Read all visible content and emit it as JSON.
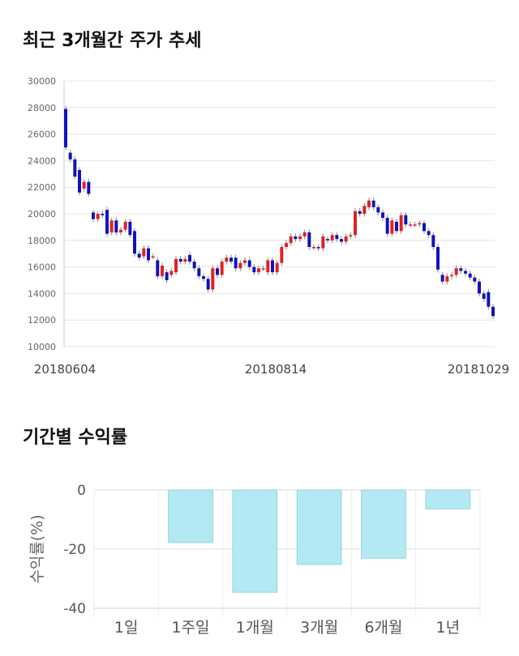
{
  "sections": {
    "price_title": "최근 3개월간 주가 추세",
    "return_title": "기간별 수익률"
  },
  "chart_data": [
    {
      "type": "candlestick",
      "title": "최근 3개월간 주가 추세",
      "y_ticks": [
        10000,
        12000,
        14000,
        16000,
        18000,
        20000,
        22000,
        24000,
        26000,
        28000,
        30000
      ],
      "ylim": [
        10000,
        30000
      ],
      "x_tick_labels": [
        "20180604",
        "20180814",
        "20181029"
      ],
      "grid": true,
      "colors": {
        "up": "#dd2222",
        "down": "#1111bb",
        "grid": "#e4e4e4"
      },
      "candles": [
        [
          27900,
          25000
        ],
        [
          24600,
          24100
        ],
        [
          24100,
          22800
        ],
        [
          23300,
          21600
        ],
        [
          21900,
          22400
        ],
        [
          22400,
          21500
        ],
        [
          20100,
          19600
        ],
        [
          19600,
          20000
        ],
        [
          20000,
          19900
        ],
        [
          20300,
          18500
        ],
        [
          18600,
          19500
        ],
        [
          19500,
          18600
        ],
        [
          18600,
          18800
        ],
        [
          18800,
          19400
        ],
        [
          19400,
          18400
        ],
        [
          18700,
          17000
        ],
        [
          17000,
          16700
        ],
        [
          16800,
          17400
        ],
        [
          17400,
          16500
        ],
        [
          16800,
          16800
        ],
        [
          16500,
          15300
        ],
        [
          15300,
          16100
        ],
        [
          15600,
          15000
        ],
        [
          15400,
          15700
        ],
        [
          15600,
          16600
        ],
        [
          16600,
          16400
        ],
        [
          16400,
          16600
        ],
        [
          16900,
          16400
        ],
        [
          16400,
          15900
        ],
        [
          15900,
          15300
        ],
        [
          15300,
          15100
        ],
        [
          15100,
          14300
        ],
        [
          14300,
          15900
        ],
        [
          15900,
          15400
        ],
        [
          15400,
          16400
        ],
        [
          16400,
          16700
        ],
        [
          16700,
          16400
        ],
        [
          16700,
          15900
        ],
        [
          15900,
          16300
        ],
        [
          16300,
          16500
        ],
        [
          16500,
          16000
        ],
        [
          16000,
          15600
        ],
        [
          15600,
          15900
        ],
        [
          15900,
          15900
        ],
        [
          15600,
          16500
        ],
        [
          16500,
          15600
        ],
        [
          15600,
          16300
        ],
        [
          16300,
          17500
        ],
        [
          17500,
          17800
        ],
        [
          17800,
          18300
        ],
        [
          18300,
          18100
        ],
        [
          18100,
          18300
        ],
        [
          18300,
          18600
        ],
        [
          18600,
          17500
        ],
        [
          17500,
          17500
        ],
        [
          17500,
          17400
        ],
        [
          17400,
          18300
        ],
        [
          18100,
          18000
        ],
        [
          18000,
          18400
        ],
        [
          18400,
          18100
        ],
        [
          18100,
          17900
        ],
        [
          17900,
          18300
        ],
        [
          18300,
          18400
        ],
        [
          18400,
          20200
        ],
        [
          20200,
          20000
        ],
        [
          20000,
          20600
        ],
        [
          20500,
          21000
        ],
        [
          21000,
          20500
        ],
        [
          20500,
          20100
        ],
        [
          20100,
          19700
        ],
        [
          19700,
          18500
        ],
        [
          18500,
          19500
        ],
        [
          19400,
          18700
        ],
        [
          18700,
          19900
        ],
        [
          19900,
          19200
        ],
        [
          19200,
          19200
        ],
        [
          19200,
          19200
        ],
        [
          19200,
          19300
        ],
        [
          19300,
          18700
        ],
        [
          18700,
          18400
        ],
        [
          18400,
          17500
        ],
        [
          17500,
          15800
        ],
        [
          15400,
          14900
        ],
        [
          14900,
          15300
        ],
        [
          15300,
          15400
        ],
        [
          15400,
          15900
        ],
        [
          15900,
          15700
        ],
        [
          15700,
          15500
        ],
        [
          15500,
          15200
        ],
        [
          15200,
          14900
        ],
        [
          14900,
          14000
        ],
        [
          14000,
          13600
        ],
        [
          14100,
          13000
        ],
        [
          13000,
          12300
        ]
      ]
    },
    {
      "type": "bar",
      "title": "기간별 수익률",
      "ylabel": "수익률(%)",
      "categories": [
        "1일",
        "1주일",
        "1개월",
        "3개월",
        "6개월",
        "1년"
      ],
      "values": [
        0,
        -17.8,
        -34.6,
        -25.2,
        -23.1,
        -6.4
      ],
      "ylim": [
        -40,
        0
      ],
      "y_ticks": [
        0,
        -20,
        -40
      ],
      "grid": true,
      "colors": {
        "bar_fill": "#b3e9f2",
        "bar_stroke": "#97d3de"
      }
    }
  ]
}
